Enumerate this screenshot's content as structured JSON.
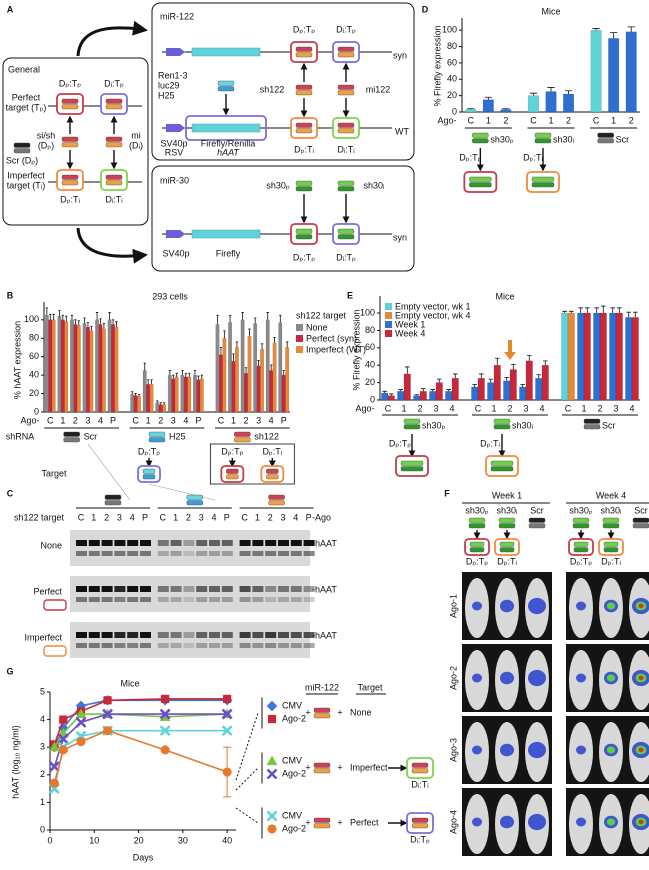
{
  "panel_labels": [
    "A",
    "B",
    "C",
    "D",
    "E",
    "F",
    "G"
  ],
  "panel_a": {
    "general": {
      "title": "General",
      "perfect": [
        "Perfect",
        "target (Tₚ)"
      ],
      "imperfect": [
        "Imperfect",
        "target (Tᵢ)"
      ],
      "sish": [
        "si/sh",
        "(Dₚ)"
      ],
      "mi": [
        "mi",
        "(Dᵢ)"
      ],
      "scr": "Scr (Dₚ)",
      "pp": "Dₚ:Tₚ",
      "ip": "Dᵢ:Tₚ",
      "pi": "Dₚ:Tᵢ",
      "ii": "Dᵢ:Tᵢ"
    },
    "mir122": {
      "title": "miR-122",
      "syn": "syn",
      "wt": "WT",
      "ren": "Ren1-3",
      "luc": "luc29",
      "h25": "H25",
      "sh122": "sh122",
      "mi122": "mi122",
      "sv40p": "SV40p",
      "rsv": "RSV",
      "reporter": "Firefly/Renilla",
      "haat": "hAAT",
      "pp": "Dₚ:Tₚ",
      "ip": "Dᵢ:Tₚ",
      "pi": "Dₚ:Tᵢ",
      "ii": "Dᵢ:Tᵢ"
    },
    "mir30": {
      "title": "miR-30",
      "sh30p": "sh30ₚ",
      "sh30i": "sh30ᵢ",
      "syn": "syn",
      "sv40p": "SV40p",
      "firefly": "Firefly",
      "pp": "Dₚ:Tₚ",
      "ip": "Dᵢ:Tₚ"
    }
  },
  "panel_c": {
    "row_title": "sh122 target",
    "lanes": [
      "C",
      "1",
      "2",
      "3",
      "4",
      "P"
    ],
    "ago": "-Ago",
    "rows": [
      "None",
      "Perfect",
      "Imperfect"
    ],
    "band": "-hAAT"
  },
  "panel_f": {
    "weeks": [
      "Week 1",
      "Week 4"
    ],
    "constructs": [
      "sh30ₚ",
      "sh30ᵢ",
      "Scr"
    ],
    "duplexes": [
      "Dₚ:Tₚ",
      "Dₚ:Tᵢ"
    ],
    "rows": [
      "Ago-1",
      "Ago-2",
      "Ago-3",
      "Ago-4"
    ]
  },
  "chart_data": [
    {
      "type": "bar",
      "title": "293 cells",
      "y_label": "% hAAT expression",
      "categories": [
        "C",
        "1",
        "2",
        "3",
        "4",
        "P",
        "C",
        "1",
        "2",
        "3",
        "4",
        "P",
        "C",
        "1",
        "2",
        "3",
        "4",
        "P"
      ],
      "ago_label": "Ago-",
      "row_label": "shRNA",
      "group_labels": [
        "Scr",
        "H25",
        "sh122"
      ],
      "target_label": "Target",
      "target_duplexes": [
        "Dₚ:Tₚ",
        "Dₚ:Tₚ",
        "Dₚ:Tᵢ"
      ],
      "legend_title": "sh122 target",
      "series": [
        {
          "name": "None",
          "color": "#8a8a8a",
          "values": [
            105,
            104,
            100,
            96,
            100,
            100,
            19,
            45,
            10,
            40,
            40,
            40,
            95,
            97,
            100,
            96,
            100,
            97
          ],
          "errors": [
            8,
            6,
            5,
            6,
            8,
            8,
            3,
            8,
            2,
            5,
            5,
            5,
            10,
            8,
            8,
            6,
            8,
            8
          ]
        },
        {
          "name": "Perfect (syn)",
          "color": "#c8283a",
          "values": [
            100,
            100,
            95,
            92,
            95,
            95,
            18,
            30,
            8,
            36,
            38,
            35,
            62,
            55,
            42,
            50,
            45,
            40
          ],
          "errors": [
            6,
            5,
            5,
            5,
            6,
            5,
            2,
            5,
            2,
            4,
            4,
            4,
            8,
            8,
            6,
            6,
            6,
            5
          ]
        },
        {
          "name": "Imperfect (WT)",
          "color": "#e8883a",
          "values": [
            100,
            98,
            94,
            88,
            90,
            92,
            17,
            30,
            8,
            38,
            38,
            36,
            80,
            70,
            82,
            68,
            75,
            70
          ],
          "errors": [
            6,
            6,
            5,
            5,
            6,
            6,
            2,
            5,
            2,
            4,
            4,
            4,
            8,
            6,
            8,
            6,
            6,
            6
          ]
        }
      ],
      "ylim": [
        0,
        115
      ],
      "yticks": [
        0,
        20,
        40,
        60,
        80,
        100
      ]
    },
    {
      "type": "bar",
      "title": "Mice",
      "y_label": "% Firefly expression",
      "categories": [
        "C",
        "1",
        "2",
        "C",
        "1",
        "2",
        "C",
        "1",
        "2"
      ],
      "values": [
        3,
        15,
        3,
        20,
        25,
        22,
        100,
        90,
        98
      ],
      "errors": [
        1,
        3,
        1,
        3,
        5,
        4,
        2,
        7,
        6
      ],
      "colors": [
        "#5fd3d8",
        "#2f6fd0",
        "#2f6fd0",
        "#5fd3d8",
        "#2f6fd0",
        "#2f6fd0",
        "#5fd3d8",
        "#2f6fd0",
        "#2f6fd0"
      ],
      "ago_label": "Ago-",
      "group_labels": [
        "sh30ₚ",
        "sh30ᵢ",
        "Scr"
      ],
      "duplexes": [
        "Dₚ:Tₚ",
        "Dₚ:Tᵢ"
      ],
      "ylim": [
        0,
        110
      ],
      "yticks": [
        0,
        20,
        40,
        60,
        80,
        100
      ]
    },
    {
      "type": "bar",
      "title": "Mice",
      "y_label": "% Firefly expression",
      "categories": [
        "C",
        "1",
        "2",
        "3",
        "4",
        "C",
        "1",
        "2",
        "3",
        "4",
        "C",
        "1",
        "2",
        "3",
        "4"
      ],
      "ago_label": "Ago-",
      "group_labels": [
        "sh30ₚ",
        "sh30ᵢ",
        "Scr"
      ],
      "duplexes": [
        "Dₚ:Tₚ",
        "Dₚ:Tᵢ"
      ],
      "series": [
        {
          "name": "Empty vector, wk 1",
          "color": "#5fd3d8",
          "values": [
            null,
            null,
            null,
            null,
            null,
            null,
            null,
            null,
            null,
            null,
            100,
            null,
            null,
            null,
            null
          ],
          "errors": [
            null,
            null,
            null,
            null,
            null,
            null,
            null,
            null,
            null,
            null,
            2,
            null,
            null,
            null,
            null
          ]
        },
        {
          "name": "Empty vector, wk 4",
          "color": "#e8883a",
          "values": [
            null,
            null,
            null,
            null,
            null,
            null,
            null,
            null,
            null,
            null,
            100,
            null,
            null,
            null,
            null
          ],
          "errors": [
            null,
            null,
            null,
            null,
            null,
            null,
            null,
            null,
            null,
            null,
            2,
            null,
            null,
            null,
            null
          ]
        },
        {
          "name": "Week 1",
          "color": "#2f6fd0",
          "values": [
            8,
            10,
            5,
            10,
            10,
            15,
            20,
            22,
            15,
            25,
            null,
            100,
            100,
            100,
            95
          ],
          "errors": [
            2,
            2,
            1,
            2,
            2,
            3,
            4,
            4,
            3,
            4,
            null,
            6,
            6,
            6,
            6
          ]
        },
        {
          "name": "Week 4",
          "color": "#c8283a",
          "values": [
            5,
            30,
            10,
            20,
            25,
            25,
            40,
            35,
            45,
            40,
            null,
            100,
            100,
            100,
            95
          ],
          "errors": [
            2,
            8,
            3,
            4,
            5,
            5,
            8,
            6,
            6,
            5,
            null,
            6,
            8,
            6,
            6
          ]
        }
      ],
      "ylim": [
        0,
        115
      ],
      "yticks": [
        0,
        20,
        40,
        60,
        80,
        100
      ]
    },
    {
      "type": "line",
      "title": "Mice",
      "x_label": "Days",
      "y_label": "hAAT (log₁₀ ng/ml)",
      "x": [
        1,
        3,
        7,
        13,
        26,
        40
      ],
      "series": [
        {
          "name": "CMV",
          "color": "#3a78d8",
          "marker": "diamond",
          "values": [
            3.0,
            3.7,
            4.5,
            4.7,
            4.7,
            4.7
          ]
        },
        {
          "name": "Ago-2",
          "color": "#c8283a",
          "marker": "square",
          "values": [
            3.1,
            4.0,
            4.3,
            4.7,
            4.75,
            4.75
          ]
        },
        {
          "name": "CMV",
          "color": "#7cc43c",
          "marker": "triangle",
          "values": [
            3.0,
            3.5,
            4.2,
            4.2,
            4.1,
            4.2
          ]
        },
        {
          "name": "Ago-2",
          "color": "#6a4fc8",
          "marker": "x",
          "values": [
            2.3,
            3.3,
            3.9,
            4.2,
            4.2,
            4.2
          ]
        },
        {
          "name": "CMV",
          "color": "#5fd3d8",
          "marker": "x",
          "values": [
            1.5,
            3.0,
            3.4,
            3.6,
            3.6,
            3.6
          ]
        },
        {
          "name": "Ago-2",
          "color": "#e8782a",
          "marker": "circle",
          "values": [
            1.7,
            2.9,
            3.2,
            3.6,
            2.9,
            2.1
          ],
          "errors": [
            null,
            null,
            null,
            null,
            null,
            0.9
          ]
        }
      ],
      "legend": {
        "mir_label": "miR-122",
        "target_label": "Target",
        "targets": [
          "None",
          "Imperfect",
          "Perfect"
        ],
        "target_duplexes": [
          "Dᵢ:Tᵢ",
          "Dᵢ:Tₚ"
        ],
        "plus": "+"
      },
      "xlim": [
        0,
        42
      ],
      "xticks": [
        0,
        10,
        20,
        30,
        40
      ],
      "ylim": [
        0,
        5
      ],
      "yticks": [
        0,
        1,
        2,
        3,
        4,
        5
      ]
    }
  ]
}
